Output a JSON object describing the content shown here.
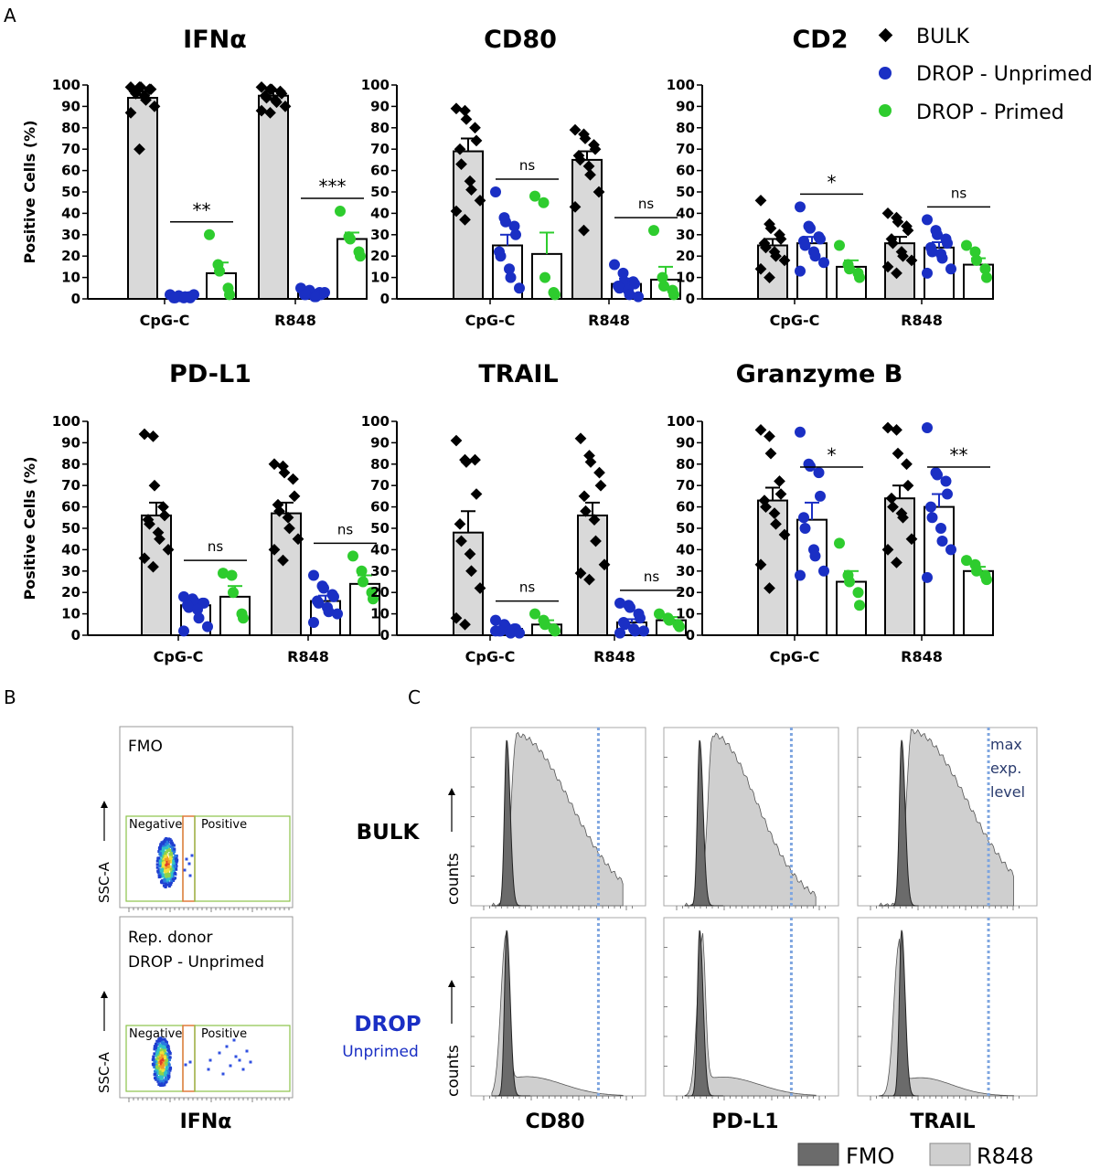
{
  "panel_letters": {
    "a": "A",
    "b": "B",
    "c": "C"
  },
  "colors": {
    "bulk": "#000000",
    "unprimed": "#1a2fc4",
    "primed": "#2ecc2e",
    "bar_fill": "#d9d9d9",
    "err_unprimed": "#1a2fc4",
    "err_primed": "#2ecc2e",
    "dotted": "#7fa6e0",
    "fmo_fill": "#6b6b6b",
    "r848_fill": "#cfcfcf"
  },
  "legend": {
    "bulk": "BULK",
    "unprimed": "DROP - Unprimed",
    "primed": "DROP - Primed"
  },
  "chart_data": [
    {
      "type": "bar",
      "title": "IFNα",
      "ylabel": "Positive Cells (%)",
      "ylim": [
        0,
        100
      ],
      "yticks": [
        0,
        10,
        20,
        30,
        40,
        50,
        60,
        70,
        80,
        90,
        100
      ],
      "categories": [
        "CpG-C",
        "R848"
      ],
      "series": [
        {
          "name": "BULK",
          "values": [
            94,
            95
          ],
          "err": [
            3,
            2
          ],
          "points": [
            [
              99,
              99,
              99,
              98,
              98,
              97,
              96,
              95,
              93,
              90,
              87,
              70
            ],
            [
              99,
              98,
              98,
              97,
              96,
              95,
              94,
              93,
              92,
              90,
              88,
              87
            ]
          ]
        },
        {
          "name": "DROP - Unprimed",
          "values": [
            1,
            3
          ],
          "err": [
            0.5,
            1
          ],
          "points": [
            [
              2,
              1.5,
              1,
              1,
              0.5,
              0.5,
              0.5,
              0.5,
              1,
              2
            ],
            [
              5,
              4,
              3,
              3,
              2,
              2,
              2,
              1,
              1,
              3
            ]
          ]
        },
        {
          "name": "DROP - Primed",
          "values": [
            12,
            28
          ],
          "err": [
            5,
            3
          ],
          "points": [
            [
              30,
              16,
              13,
              5,
              2
            ],
            [
              41,
              29,
              28,
              22,
              20
            ]
          ]
        }
      ],
      "annotations": [
        {
          "group": "CpG-C",
          "text": "**"
        },
        {
          "group": "R848",
          "text": "***"
        }
      ]
    },
    {
      "type": "bar",
      "title": "CD80",
      "ylim": [
        0,
        100
      ],
      "yticks": [
        0,
        10,
        20,
        30,
        40,
        50,
        60,
        70,
        80,
        90,
        100
      ],
      "categories": [
        "CpG-C",
        "R848"
      ],
      "series": [
        {
          "name": "BULK",
          "values": [
            69,
            65
          ],
          "err": [
            6,
            4
          ],
          "points": [
            [
              89,
              88,
              84,
              80,
              74,
              70,
              63,
              55,
              51,
              46,
              41,
              37
            ],
            [
              79,
              77,
              75,
              72,
              70,
              67,
              65,
              62,
              58,
              50,
              43,
              32
            ]
          ]
        },
        {
          "name": "DROP - Unprimed",
          "values": [
            25,
            7
          ],
          "err": [
            5,
            2.5
          ],
          "points": [
            [
              50,
              38,
              36,
              34,
              30,
              22,
              20,
              14,
              10,
              5
            ],
            [
              16,
              12,
              8,
              8,
              7,
              6,
              5,
              4,
              2,
              1
            ]
          ]
        },
        {
          "name": "DROP - Primed",
          "values": [
            21,
            9
          ],
          "err": [
            10,
            6
          ],
          "points": [
            [
              48,
              45,
              10,
              3,
              2
            ],
            [
              32,
              10,
              6,
              4,
              2
            ]
          ]
        }
      ],
      "annotations": [
        {
          "group": "CpG-C",
          "text": "ns"
        },
        {
          "group": "R848",
          "text": "ns"
        }
      ]
    },
    {
      "type": "bar",
      "title": "CD2",
      "ylim": [
        0,
        100
      ],
      "yticks": [
        0,
        10,
        20,
        30,
        40,
        50,
        60,
        70,
        80,
        90,
        100
      ],
      "categories": [
        "CpG-C",
        "R848"
      ],
      "series": [
        {
          "name": "BULK",
          "values": [
            25,
            26
          ],
          "err": [
            3,
            3
          ],
          "points": [
            [
              46,
              35,
              33,
              30,
              28,
              26,
              24,
              22,
              20,
              18,
              14,
              10
            ],
            [
              40,
              38,
              36,
              34,
              32,
              28,
              26,
              22,
              20,
              18,
              15,
              12
            ]
          ]
        },
        {
          "name": "DROP - Unprimed",
          "values": [
            26,
            24
          ],
          "err": [
            3,
            2.5
          ],
          "points": [
            [
              43,
              34,
              33,
              29,
              28,
              27,
              25,
              22,
              20,
              17,
              13
            ],
            [
              37,
              32,
              30,
              28,
              26,
              24,
              22,
              21,
              19,
              14,
              12
            ]
          ]
        },
        {
          "name": "DROP - Primed",
          "values": [
            15,
            16
          ],
          "err": [
            3,
            3
          ],
          "points": [
            [
              25,
              16,
              14,
              12,
              10
            ],
            [
              25,
              22,
              18,
              14,
              10
            ]
          ]
        }
      ],
      "annotations": [
        {
          "group": "CpG-C",
          "text": "*"
        },
        {
          "group": "R848",
          "text": "ns"
        }
      ]
    },
    {
      "type": "bar",
      "title": "PD-L1",
      "ylabel": "Positive Cells (%)",
      "ylim": [
        0,
        100
      ],
      "yticks": [
        0,
        10,
        20,
        30,
        40,
        50,
        60,
        70,
        80,
        90,
        100
      ],
      "categories": [
        "CpG-C",
        "R848"
      ],
      "series": [
        {
          "name": "BULK",
          "values": [
            56,
            57
          ],
          "err": [
            6,
            5
          ],
          "points": [
            [
              94,
              93,
              70,
              60,
              56,
              54,
              52,
              48,
              45,
              40,
              36,
              32
            ],
            [
              80,
              79,
              76,
              73,
              65,
              61,
              58,
              55,
              50,
              45,
              40,
              35
            ]
          ]
        },
        {
          "name": "DROP - Unprimed",
          "values": [
            14,
            16
          ],
          "err": [
            2,
            2.5
          ],
          "points": [
            [
              18,
              17,
              16,
              15,
              15,
              14,
              13,
              12,
              8,
              4,
              2
            ],
            [
              28,
              23,
              22,
              19,
              18,
              16,
              15,
              13,
              11,
              10,
              6
            ]
          ]
        },
        {
          "name": "DROP - Primed",
          "values": [
            18,
            24
          ],
          "err": [
            5,
            4
          ],
          "points": [
            [
              29,
              28,
              20,
              10,
              8
            ],
            [
              37,
              30,
              25,
              20,
              17
            ]
          ]
        }
      ],
      "annotations": [
        {
          "group": "CpG-C",
          "text": "ns"
        },
        {
          "group": "R848",
          "text": "ns"
        }
      ]
    },
    {
      "type": "bar",
      "title": "TRAIL",
      "ylim": [
        0,
        100
      ],
      "yticks": [
        0,
        10,
        20,
        30,
        40,
        50,
        60,
        70,
        80,
        90,
        100
      ],
      "categories": [
        "CpG-C",
        "R848"
      ],
      "series": [
        {
          "name": "BULK",
          "values": [
            48,
            56
          ],
          "err": [
            10,
            6
          ],
          "points": [
            [
              91,
              82,
              81,
              82,
              66,
              52,
              44,
              38,
              30,
              22,
              8,
              5
            ],
            [
              92,
              84,
              81,
              76,
              70,
              65,
              58,
              54,
              44,
              33,
              29,
              26
            ]
          ]
        },
        {
          "name": "DROP - Unprimed",
          "values": [
            3,
            6
          ],
          "err": [
            0.8,
            1.5
          ],
          "points": [
            [
              7,
              5,
              4,
              3,
              3,
              2,
              2,
              2,
              1,
              1,
              2
            ],
            [
              15,
              14,
              13,
              10,
              8,
              6,
              5,
              3,
              2,
              2,
              1
            ]
          ]
        },
        {
          "name": "DROP - Primed",
          "values": [
            5,
            7
          ],
          "err": [
            2,
            1.5
          ],
          "points": [
            [
              10,
              7,
              5,
              3,
              2
            ],
            [
              10,
              8,
              7,
              5,
              4
            ]
          ]
        }
      ],
      "annotations": [
        {
          "group": "CpG-C",
          "text": "ns"
        },
        {
          "group": "R848",
          "text": "ns"
        }
      ]
    },
    {
      "type": "bar",
      "title": "Granzyme B",
      "ylim": [
        0,
        100
      ],
      "yticks": [
        0,
        10,
        20,
        30,
        40,
        50,
        60,
        70,
        80,
        90,
        100
      ],
      "categories": [
        "CpG-C",
        "R848"
      ],
      "series": [
        {
          "name": "BULK",
          "values": [
            63,
            64
          ],
          "err": [
            6,
            6
          ],
          "points": [
            [
              96,
              93,
              85,
              72,
              66,
              63,
              60,
              57,
              52,
              47,
              33,
              22
            ],
            [
              97,
              96,
              85,
              80,
              70,
              64,
              60,
              57,
              55,
              45,
              40,
              34
            ]
          ]
        },
        {
          "name": "DROP - Unprimed",
          "values": [
            54,
            60
          ],
          "err": [
            8,
            6
          ],
          "points": [
            [
              95,
              80,
              79,
              76,
              65,
              55,
              50,
              40,
              37,
              30,
              28
            ],
            [
              97,
              76,
              75,
              72,
              66,
              60,
              55,
              50,
              44,
              40,
              27
            ]
          ]
        },
        {
          "name": "DROP - Primed",
          "values": [
            25,
            30
          ],
          "err": [
            5,
            2
          ],
          "points": [
            [
              43,
              28,
              25,
              20,
              14
            ],
            [
              35,
              33,
              30,
              28,
              26
            ]
          ]
        }
      ],
      "annotations": [
        {
          "group": "CpG-C",
          "text": "*"
        },
        {
          "group": "R848",
          "text": "**"
        }
      ]
    }
  ],
  "panel_b": {
    "top_label": "FMO",
    "bottom_label_1": "Rep. donor",
    "bottom_label_2": "DROP - Unprimed",
    "gate_negative": "Negative",
    "gate_positive": "Positive",
    "y_axis": "SSC-A",
    "x_axis": "IFNα"
  },
  "panel_c": {
    "row_bulk": "BULK",
    "row_drop": "DROP",
    "row_drop_sub": "Unprimed",
    "y_axis": "counts",
    "columns": [
      "CD80",
      "PD-L1",
      "TRAIL"
    ],
    "max_note_1": "max",
    "max_note_2": "exp.",
    "max_note_3": "level",
    "legend_fmo": "FMO",
    "legend_r848": "R848"
  }
}
